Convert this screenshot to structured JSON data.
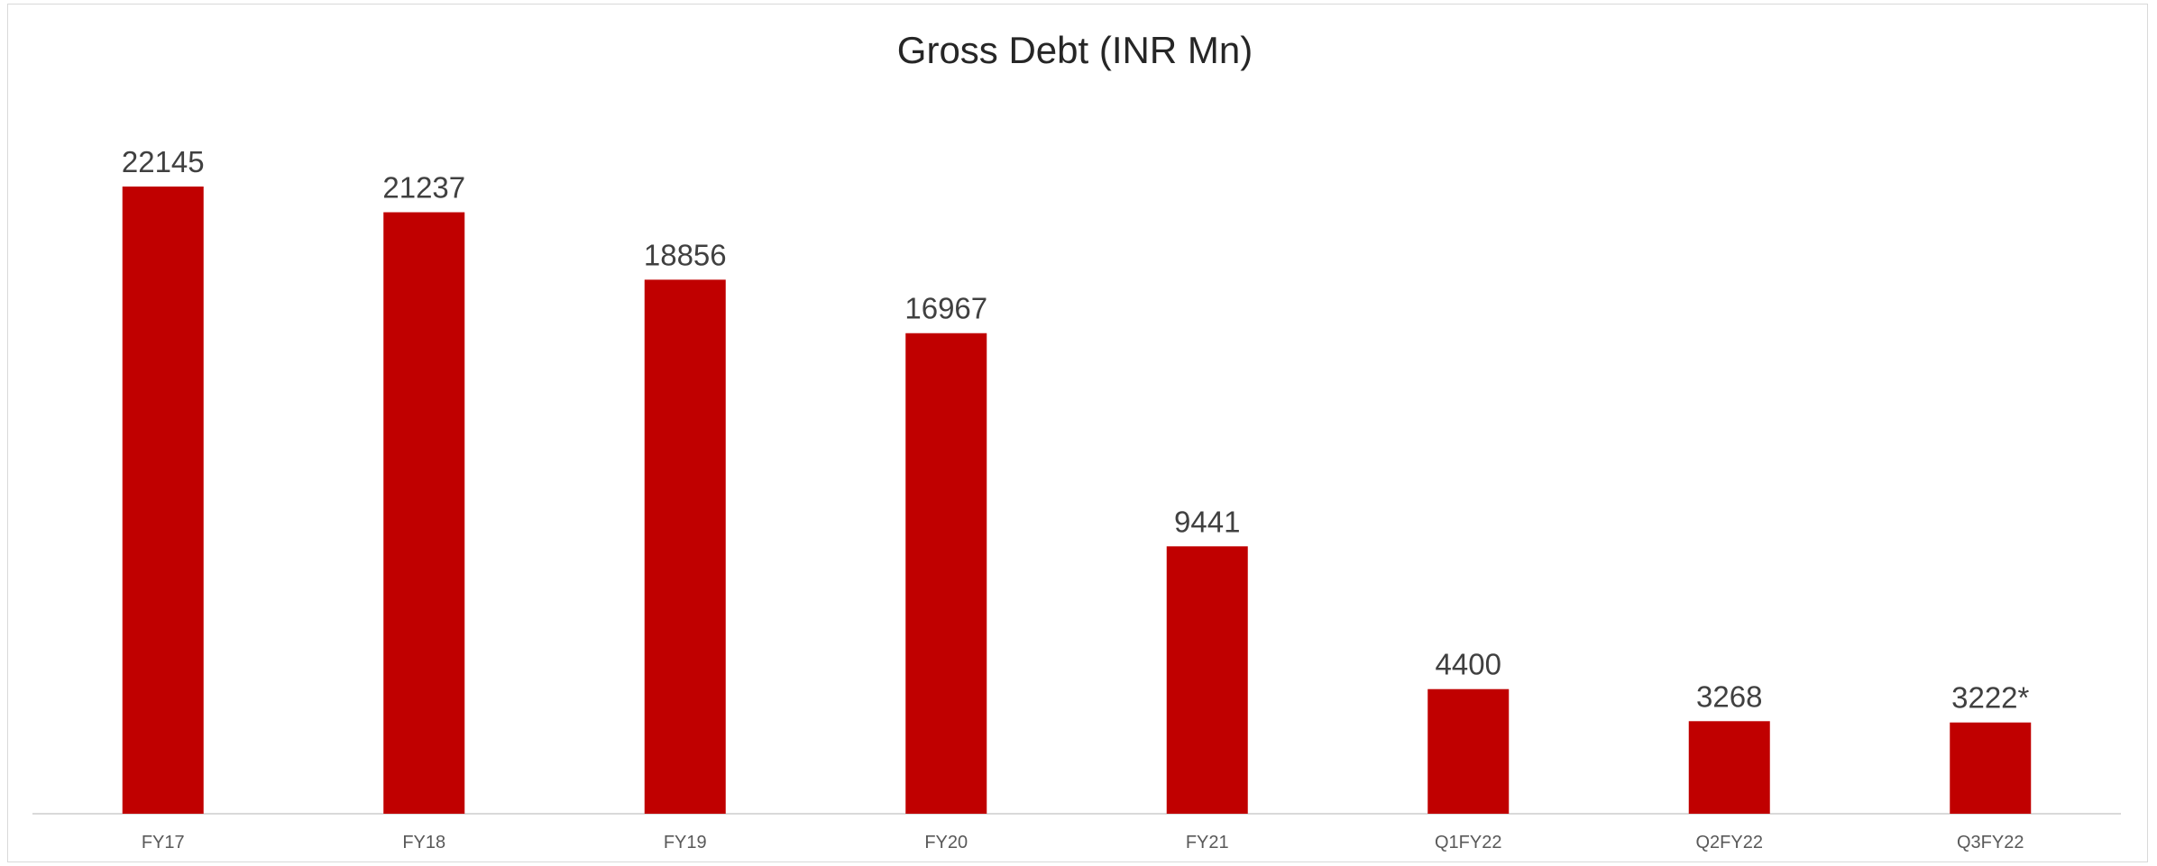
{
  "chart_data": {
    "type": "bar",
    "title": "Gross Debt (INR Mn)",
    "xlabel": "",
    "ylabel": "",
    "categories": [
      "FY17",
      "FY18",
      "FY19",
      "FY20",
      "FY21",
      "Q1FY22",
      "Q2FY22",
      "Q3FY22"
    ],
    "values": [
      22145,
      21237,
      18856,
      16967,
      9441,
      4400,
      3268,
      3222
    ],
    "data_labels": [
      "22145",
      "21237",
      "18856",
      "16967",
      "9441",
      "4400",
      "3268",
      "3222*"
    ],
    "ylim": [
      0,
      22145
    ],
    "grid": false,
    "legend": "none",
    "bar_color": "#C00000"
  }
}
